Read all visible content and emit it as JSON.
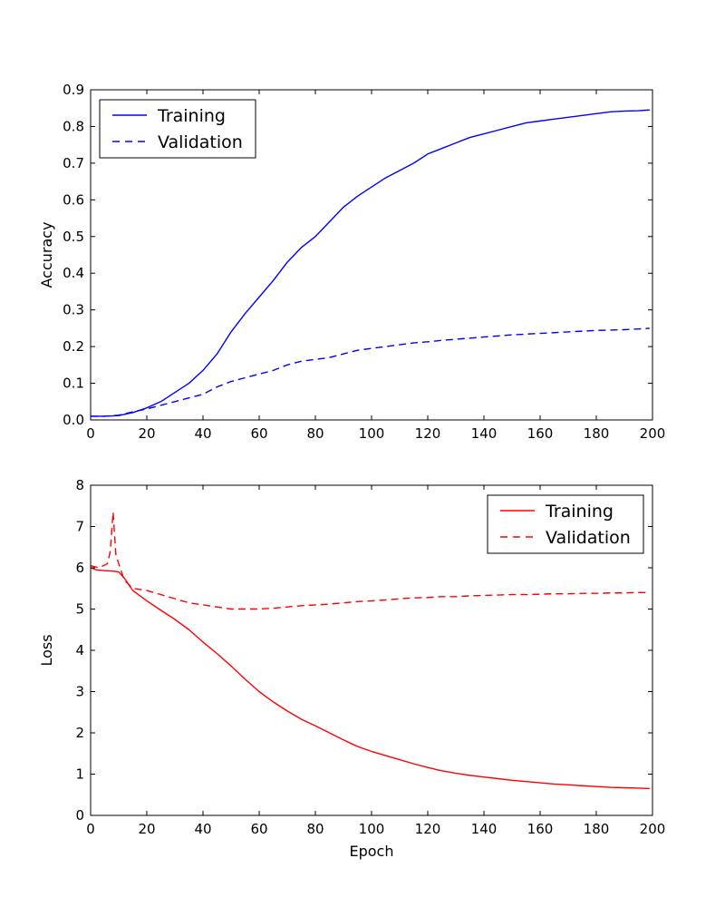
{
  "chart_data": [
    {
      "type": "line",
      "title": "",
      "xlabel": "",
      "ylabel": "Accuracy",
      "xlim": [
        0,
        200
      ],
      "ylim": [
        0,
        0.9
      ],
      "xticks": [
        0,
        20,
        40,
        60,
        80,
        100,
        120,
        140,
        160,
        180,
        200
      ],
      "xtick_labels": [
        "0",
        "20",
        "40",
        "60",
        "80",
        "100",
        "120",
        "140",
        "160",
        "180",
        "200"
      ],
      "yticks": [
        0,
        0.1,
        0.2,
        0.3,
        0.4,
        0.5,
        0.6,
        0.7,
        0.8,
        0.9
      ],
      "ytick_labels": [
        "0.0",
        "0.1",
        "0.2",
        "0.3",
        "0.4",
        "0.5",
        "0.6",
        "0.7",
        "0.8",
        "0.9"
      ],
      "grid": false,
      "legend": "top-left",
      "series": [
        {
          "name": "Training",
          "color": "#0000ff",
          "style": "solid",
          "x": [
            0,
            5,
            10,
            15,
            20,
            25,
            30,
            35,
            40,
            45,
            50,
            55,
            60,
            65,
            70,
            75,
            80,
            85,
            90,
            95,
            100,
            105,
            110,
            115,
            120,
            125,
            130,
            135,
            140,
            145,
            150,
            155,
            160,
            165,
            170,
            175,
            180,
            185,
            190,
            195,
            199
          ],
          "y": [
            0.01,
            0.01,
            0.012,
            0.02,
            0.033,
            0.05,
            0.075,
            0.1,
            0.135,
            0.18,
            0.24,
            0.29,
            0.335,
            0.38,
            0.43,
            0.47,
            0.5,
            0.54,
            0.58,
            0.61,
            0.635,
            0.66,
            0.68,
            0.7,
            0.725,
            0.74,
            0.755,
            0.77,
            0.78,
            0.79,
            0.8,
            0.81,
            0.815,
            0.82,
            0.825,
            0.83,
            0.835,
            0.84,
            0.842,
            0.843,
            0.845
          ]
        },
        {
          "name": "Validation",
          "color": "#0000ff",
          "style": "dashed",
          "x": [
            0,
            5,
            10,
            15,
            20,
            25,
            30,
            35,
            40,
            45,
            50,
            55,
            60,
            65,
            70,
            75,
            80,
            85,
            90,
            95,
            100,
            105,
            110,
            115,
            120,
            125,
            130,
            135,
            140,
            145,
            150,
            155,
            160,
            165,
            170,
            175,
            180,
            185,
            190,
            195,
            199
          ],
          "y": [
            0.01,
            0.01,
            0.013,
            0.022,
            0.03,
            0.04,
            0.05,
            0.06,
            0.07,
            0.09,
            0.105,
            0.115,
            0.125,
            0.135,
            0.15,
            0.16,
            0.165,
            0.17,
            0.18,
            0.19,
            0.195,
            0.2,
            0.205,
            0.21,
            0.213,
            0.217,
            0.22,
            0.223,
            0.226,
            0.229,
            0.232,
            0.234,
            0.236,
            0.238,
            0.24,
            0.242,
            0.244,
            0.245,
            0.246,
            0.248,
            0.25
          ]
        }
      ]
    },
    {
      "type": "line",
      "title": "",
      "xlabel": "Epoch",
      "ylabel": "Loss",
      "xlim": [
        0,
        200
      ],
      "ylim": [
        0,
        8
      ],
      "xticks": [
        0,
        20,
        40,
        60,
        80,
        100,
        120,
        140,
        160,
        180,
        200
      ],
      "xtick_labels": [
        "0",
        "20",
        "40",
        "60",
        "80",
        "100",
        "120",
        "140",
        "160",
        "180",
        "200"
      ],
      "yticks": [
        0,
        1,
        2,
        3,
        4,
        5,
        6,
        7,
        8
      ],
      "ytick_labels": [
        "0",
        "1",
        "2",
        "3",
        "4",
        "5",
        "6",
        "7",
        "8"
      ],
      "grid": false,
      "legend": "top-right",
      "series": [
        {
          "name": "Training",
          "color": "#ff0000",
          "style": "solid",
          "x": [
            0,
            2,
            5,
            8,
            10,
            12,
            15,
            20,
            25,
            30,
            35,
            40,
            45,
            50,
            55,
            60,
            65,
            70,
            75,
            80,
            85,
            90,
            95,
            100,
            105,
            110,
            115,
            120,
            125,
            130,
            135,
            140,
            145,
            150,
            155,
            160,
            165,
            170,
            175,
            180,
            185,
            190,
            195,
            199
          ],
          "y": [
            6.0,
            5.95,
            5.93,
            5.92,
            5.9,
            5.75,
            5.45,
            5.2,
            4.97,
            4.75,
            4.5,
            4.2,
            3.92,
            3.62,
            3.3,
            3.0,
            2.75,
            2.53,
            2.33,
            2.17,
            2.0,
            1.83,
            1.67,
            1.55,
            1.45,
            1.35,
            1.25,
            1.16,
            1.08,
            1.02,
            0.97,
            0.93,
            0.89,
            0.85,
            0.82,
            0.79,
            0.76,
            0.74,
            0.72,
            0.7,
            0.68,
            0.67,
            0.66,
            0.65
          ]
        },
        {
          "name": "Validation",
          "color": "#ff0000",
          "style": "dashed",
          "x": [
            0,
            3,
            6,
            7,
            8,
            9,
            10,
            12,
            15,
            20,
            25,
            30,
            35,
            40,
            45,
            50,
            55,
            60,
            65,
            70,
            75,
            80,
            85,
            90,
            95,
            100,
            105,
            110,
            115,
            120,
            125,
            130,
            135,
            140,
            145,
            150,
            155,
            160,
            165,
            170,
            175,
            180,
            185,
            190,
            195,
            199
          ],
          "y": [
            6.05,
            6.0,
            6.1,
            6.4,
            7.35,
            6.3,
            6.1,
            5.7,
            5.5,
            5.45,
            5.35,
            5.25,
            5.15,
            5.1,
            5.05,
            5.0,
            5.0,
            5.0,
            5.02,
            5.05,
            5.08,
            5.1,
            5.12,
            5.15,
            5.18,
            5.2,
            5.22,
            5.25,
            5.27,
            5.28,
            5.3,
            5.3,
            5.32,
            5.33,
            5.34,
            5.35,
            5.35,
            5.36,
            5.37,
            5.37,
            5.38,
            5.38,
            5.39,
            5.39,
            5.4,
            5.4
          ]
        }
      ]
    }
  ]
}
